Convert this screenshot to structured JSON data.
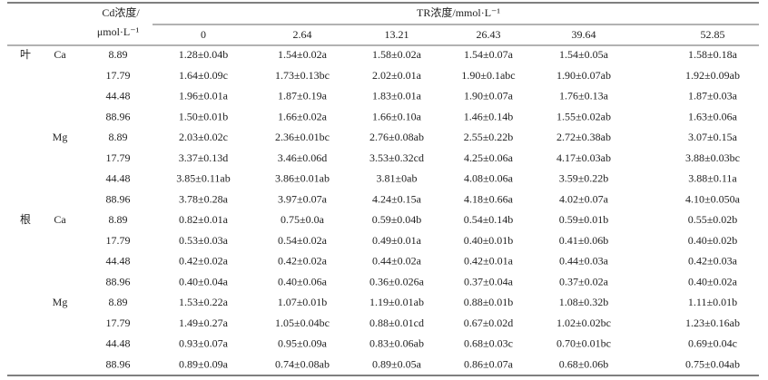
{
  "header": {
    "cd_label": [
      "Cd浓度/",
      "μmol·L⁻¹"
    ],
    "tr_label": "TR浓度/mmol·L⁻¹",
    "tr_levels": [
      "0",
      "2.64",
      "13.21",
      "26.43",
      "39.64",
      "52.85"
    ]
  },
  "table": {
    "organs": [
      {
        "name": "叶",
        "elements": [
          {
            "name": "Ca",
            "rows": [
              {
                "cd": "8.89",
                "values": [
                  "1.28±0.04b",
                  "1.54±0.02a",
                  "1.58±0.02a",
                  "1.54±0.07a",
                  "1.54±0.05a",
                  "1.58±0.18a"
                ]
              },
              {
                "cd": "17.79",
                "values": [
                  "1.64±0.09c",
                  "1.73±0.13bc",
                  "2.02±0.01a",
                  "1.90±0.1abc",
                  "1.90±0.07ab",
                  "1.92±0.09ab"
                ]
              },
              {
                "cd": "44.48",
                "values": [
                  "1.96±0.01a",
                  "1.87±0.19a",
                  "1.83±0.01a",
                  "1.90±0.07a",
                  "1.76±0.13a",
                  "1.87±0.03a"
                ]
              },
              {
                "cd": "88.96",
                "values": [
                  "1.50±0.01b",
                  "1.66±0.02a",
                  "1.66±0.10a",
                  "1.46±0.14b",
                  "1.55±0.02ab",
                  "1.63±0.06a"
                ]
              }
            ]
          },
          {
            "name": "Mg",
            "rows": [
              {
                "cd": "8.89",
                "values": [
                  "2.03±0.02c",
                  "2.36±0.01bc",
                  "2.76±0.08ab",
                  "2.55±0.22b",
                  "2.72±0.38ab",
                  "3.07±0.15a"
                ]
              },
              {
                "cd": "17.79",
                "values": [
                  "3.37±0.13d",
                  "3.46±0.06d",
                  "3.53±0.32cd",
                  "4.25±0.06a",
                  "4.17±0.03ab",
                  "3.88±0.03bc"
                ]
              },
              {
                "cd": "44.48",
                "values": [
                  "3.85±0.11ab",
                  "3.86±0.01ab",
                  "3.81±0ab",
                  "4.08±0.06a",
                  "3.59±0.22b",
                  "3.88±0.11a"
                ]
              },
              {
                "cd": "88.96",
                "values": [
                  "3.78±0.28a",
                  "3.97±0.07a",
                  "4.24±0.15a",
                  "4.18±0.66a",
                  "4.02±0.07a",
                  "4.10±0.050a"
                ]
              }
            ]
          }
        ]
      },
      {
        "name": "根",
        "elements": [
          {
            "name": "Ca",
            "rows": [
              {
                "cd": "8.89",
                "values": [
                  "0.82±0.01a",
                  "0.75±0.0a",
                  "0.59±0.04b",
                  "0.54±0.14b",
                  "0.59±0.01b",
                  "0.55±0.02b"
                ]
              },
              {
                "cd": "17.79",
                "values": [
                  "0.53±0.03a",
                  "0.54±0.02a",
                  "0.49±0.01a",
                  "0.40±0.01b",
                  "0.41±0.06b",
                  "0.40±0.02b"
                ]
              },
              {
                "cd": "44.48",
                "values": [
                  "0.42±0.02a",
                  "0.42±0.02a",
                  "0.44±0.02a",
                  "0.42±0.01a",
                  "0.44±0.03a",
                  "0.42±0.03a"
                ]
              },
              {
                "cd": "88.96",
                "values": [
                  "0.40±0.04a",
                  "0.40±0.06a",
                  "0.36±0.026a",
                  "0.37±0.04a",
                  "0.37±0.02a",
                  "0.40±0.02a"
                ]
              }
            ]
          },
          {
            "name": "Mg",
            "rows": [
              {
                "cd": "8.89",
                "values": [
                  "1.53±0.22a",
                  "1.07±0.01b",
                  "1.19±0.01ab",
                  "0.88±0.01b",
                  "1.08±0.32b",
                  "1.11±0.01b"
                ]
              },
              {
                "cd": "17.79",
                "values": [
                  "1.49±0.27a",
                  "1.05±0.04bc",
                  "0.88±0.01cd",
                  "0.67±0.02d",
                  "1.02±0.02bc",
                  "1.23±0.16ab"
                ]
              },
              {
                "cd": "44.48",
                "values": [
                  "0.93±0.07a",
                  "0.95±0.09a",
                  "0.83±0.06ab",
                  "0.68±0.03c",
                  "0.70±0.01bc",
                  "0.69±0.04c"
                ]
              },
              {
                "cd": "88.96",
                "values": [
                  "0.89±0.09a",
                  "0.74±0.08ab",
                  "0.89±0.05a",
                  "0.86±0.07a",
                  "0.68±0.06b",
                  "0.75±0.04ab"
                ]
              }
            ]
          }
        ]
      }
    ]
  }
}
